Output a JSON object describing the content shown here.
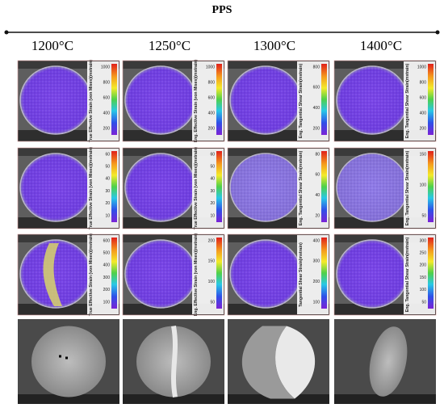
{
  "header": {
    "title": "PPS"
  },
  "columns": [
    {
      "label": "1200°C",
      "panels": [
        {
          "bar_title": "True Effective Strain (von Mises)(mstrain)",
          "ticks": [
            "1000",
            "800",
            "600",
            "400",
            "200"
          ]
        },
        {
          "bar_title": "True Effective Strain (von Mises)(mstrain)",
          "ticks": [
            "60",
            "50",
            "40",
            "30",
            "20",
            "10"
          ]
        },
        {
          "bar_title": "True Effective Strain (von Mises)(mstrain)",
          "ticks": [
            "600",
            "500",
            "400",
            "300",
            "200",
            "100"
          ]
        }
      ]
    },
    {
      "label": "1250°C",
      "panels": [
        {
          "bar_title": "Eng. Effective Strain (von Mises)(mstrain)",
          "ticks": [
            "1000",
            "800",
            "600",
            "400",
            "200"
          ]
        },
        {
          "bar_title": "True Effective Strain (von Mises)(mstrain)",
          "ticks": [
            "60",
            "50",
            "40",
            "30",
            "20",
            "10"
          ]
        },
        {
          "bar_title": "Eng. Effective Strain (von Mises)(mstrain)",
          "ticks": [
            "200",
            "150",
            "100",
            "50"
          ]
        }
      ]
    },
    {
      "label": "1300°C",
      "panels": [
        {
          "bar_title": "Eng. Tangential Shear Strain(mstrain)",
          "ticks": [
            "800",
            "600",
            "400",
            "200"
          ]
        },
        {
          "bar_title": "Eng. Tangential Shear Strain(mstrain)",
          "ticks": [
            "80",
            "60",
            "40",
            "20"
          ]
        },
        {
          "bar_title": "Tangential Shear Strain(mstrain)",
          "ticks": [
            "400",
            "300",
            "200",
            "100"
          ]
        }
      ]
    },
    {
      "label": "1400°C",
      "panels": [
        {
          "bar_title": "Eng. Tangential Shear Strain(mstrain)",
          "ticks": [
            "1000",
            "800",
            "600",
            "400",
            "200"
          ]
        },
        {
          "bar_title": "Eng. Tangential Shear Strain(mstrain)",
          "ticks": [
            "150",
            "100",
            "50"
          ]
        },
        {
          "bar_title": "Eng. Tangential Shear Strain(mstrain)",
          "ticks": [
            "300",
            "250",
            "200",
            "150",
            "100",
            "50"
          ]
        }
      ]
    }
  ]
}
